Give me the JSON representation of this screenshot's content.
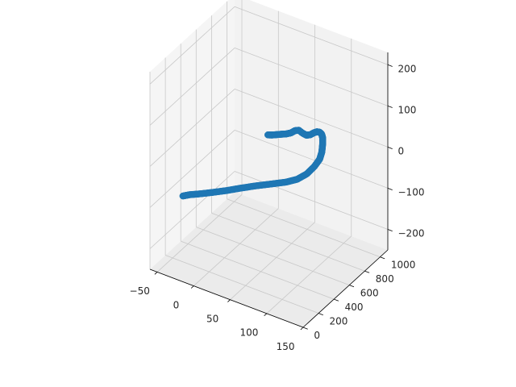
{
  "chart_data": {
    "type": "scatter",
    "projection": "3d",
    "grid": true,
    "marker_color": "#1f77b4",
    "pane_color": "#f2f2f2",
    "grid_color": "#c8c8c8",
    "xlim": [
      -60,
      150
    ],
    "ylim": [
      0,
      1100
    ],
    "zlim": [
      -250,
      230
    ],
    "x_ticks": [
      -50,
      0,
      50,
      100,
      150
    ],
    "y_ticks": [
      0,
      200,
      400,
      600,
      800,
      1000
    ],
    "z_ticks": [
      -200,
      -100,
      0,
      100,
      200
    ],
    "x_tick_labels": [
      "−50",
      "0",
      "50",
      "100",
      "150"
    ],
    "y_tick_labels": [
      "0",
      "200",
      "400",
      "600",
      "800",
      "1000"
    ],
    "z_tick_labels": [
      "−200",
      "−100",
      "0",
      "100",
      "200"
    ],
    "series": [
      {
        "x": [
          -36,
          -30,
          -20,
          -8,
          5,
          18,
          32,
          46,
          58,
          68,
          76,
          82,
          86,
          87,
          86,
          85,
          83,
          80,
          76,
          72,
          67,
          62,
          57,
          52,
          47,
          42,
          36,
          30,
          24,
          18,
          13
        ],
        "y": [
          200,
          230,
          270,
          320,
          380,
          450,
          520,
          590,
          650,
          700,
          750,
          790,
          820,
          840,
          860,
          870,
          875,
          878,
          880,
          880,
          878,
          876,
          874,
          872,
          870,
          866,
          862,
          858,
          852,
          846,
          840
        ],
        "z": [
          -90,
          -88,
          -86,
          -83,
          -80,
          -77,
          -74,
          -72,
          -70,
          -65,
          -55,
          -40,
          -25,
          -10,
          5,
          18,
          25,
          27,
          25,
          20,
          12,
          8,
          10,
          14,
          10,
          2,
          -4,
          -8,
          -12,
          -16,
          -18
        ]
      }
    ]
  }
}
